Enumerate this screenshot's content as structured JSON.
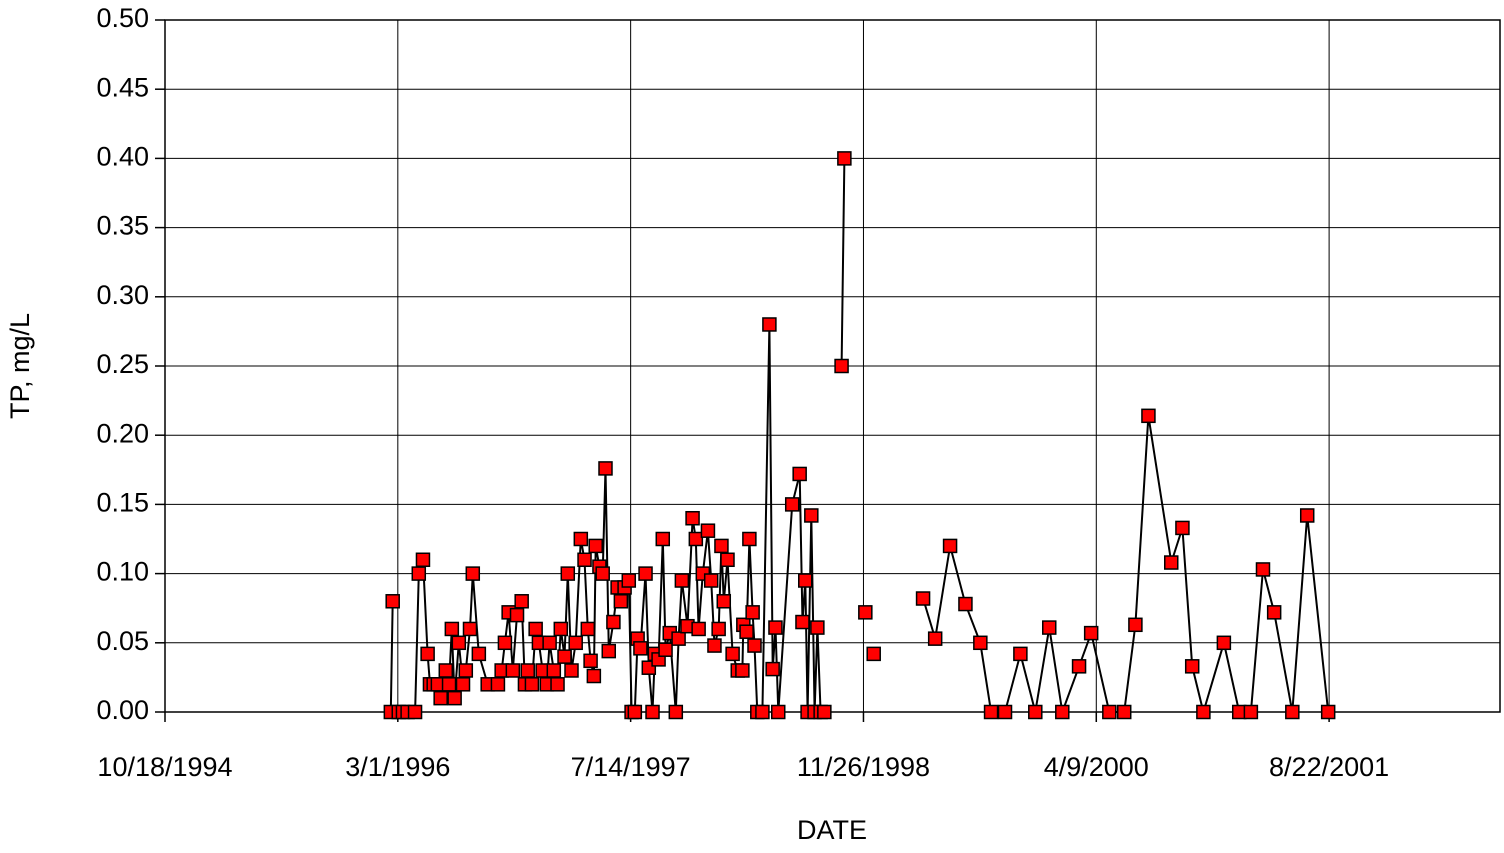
{
  "chart_data": {
    "type": "line",
    "xlabel": "DATE",
    "ylabel": "TP, mg/L",
    "color": "#000000",
    "marker_color": "#ff0000",
    "grid": true,
    "xlim": [
      "1994-10-18",
      "2002-08-24"
    ],
    "xticks": [
      {
        "value": "1994-10-18",
        "label": "10/18/1994"
      },
      {
        "value": "1996-03-01",
        "label": "3/1/1996"
      },
      {
        "value": "1997-07-14",
        "label": "7/14/1997"
      },
      {
        "value": "1998-11-26",
        "label": "11/26/1998"
      },
      {
        "value": "2000-04-09",
        "label": "4/9/2000"
      },
      {
        "value": "2001-08-22",
        "label": "8/22/2001"
      }
    ],
    "ylim": [
      0,
      0.5
    ],
    "yticks": [
      {
        "value": 0,
        "label": "0.00"
      },
      {
        "value": 0.05,
        "label": "0.05"
      },
      {
        "value": 0.1,
        "label": "0.10"
      },
      {
        "value": 0.15,
        "label": "0.15"
      },
      {
        "value": 0.2,
        "label": "0.20"
      },
      {
        "value": 0.25,
        "label": "0.25"
      },
      {
        "value": 0.3,
        "label": "0.30"
      },
      {
        "value": 0.35,
        "label": "0.35"
      },
      {
        "value": 0.4,
        "label": "0.40"
      },
      {
        "value": 0.45,
        "label": "0.45"
      },
      {
        "value": 0.5,
        "label": "0.50"
      }
    ],
    "x": [
      "1996-02-19",
      "1996-02-15",
      "1996-03-03",
      "1996-03-12",
      "1996-03-22",
      "1996-04-07",
      "1996-04-15",
      "1996-04-24",
      "1996-05-04",
      "1996-05-09",
      "1996-05-17",
      "1996-05-26",
      "1996-06-01",
      "1996-06-12",
      "1996-06-19",
      "1996-06-25",
      "1996-07-01",
      "1996-07-10",
      "1996-07-19",
      "1996-07-25",
      "1996-08-03",
      "1996-08-09",
      "1996-08-22",
      "1996-09-10",
      "1996-10-02",
      "1996-10-10",
      "1996-10-17",
      "1996-10-25",
      "1996-11-03",
      "1996-11-12",
      "1996-11-22",
      "1996-11-29",
      "1996-12-05",
      "1996-12-14",
      "1996-12-22",
      "1996-12-29",
      "1997-01-06",
      "1997-01-15",
      "1997-01-21",
      "1997-01-30",
      "1997-02-07",
      "1997-02-14",
      "1997-02-22",
      "1997-03-01",
      "1997-03-09",
      "1997-03-18",
      "1997-03-29",
      "1997-04-06",
      "1997-04-13",
      "1997-04-19",
      "1997-04-26",
      "1997-04-30",
      "1997-05-08",
      "1997-05-15",
      "1997-05-21",
      "1997-05-28",
      "1997-06-07",
      "1997-06-16",
      "1997-06-23",
      "1997-07-01",
      "1997-07-10",
      "1997-07-16",
      "1997-07-23",
      "1997-07-29",
      "1997-08-04",
      "1997-08-15",
      "1997-08-22",
      "1997-08-30",
      "1997-09-04",
      "1997-09-12",
      "1997-09-21",
      "1997-09-27",
      "1997-10-06",
      "1997-10-19",
      "1997-10-25",
      "1997-11-01",
      "1997-11-13",
      "1997-11-24",
      "1997-12-01",
      "1997-12-07",
      "1997-12-16",
      "1997-12-27",
      "1998-01-03",
      "1998-01-10",
      "1998-01-19",
      "1998-01-25",
      "1998-01-30",
      "1998-02-07",
      "1998-02-18",
      "1998-03-01",
      "1998-03-11",
      "1998-03-13",
      "1998-03-20",
      "1998-03-26",
      "1998-04-02",
      "1998-04-06",
      "1998-04-12",
      "1998-04-23",
      "1998-05-08",
      "1998-05-15",
      "1998-05-21",
      "1998-05-27",
      "1998-06-26",
      "1998-07-12",
      "1998-07-18",
      "1998-07-24",
      "1998-07-29",
      "1998-08-06",
      "1998-08-13",
      "1998-08-19",
      "1998-08-26",
      "1998-09-03",
      null,
      "1998-10-10",
      "1998-10-16",
      null,
      "1998-11-30",
      null,
      "1998-12-18",
      null,
      "1999-04-03",
      "1999-04-29",
      "1999-05-31",
      "1999-07-03",
      "1999-08-04",
      "1999-08-27",
      "1999-09-26",
      "1999-10-29",
      "1999-11-30",
      "1999-12-30",
      "2000-01-27",
      "2000-03-03",
      "2000-03-29",
      "2000-05-07",
      "2000-06-08",
      "2000-07-02",
      "2000-07-30",
      "2000-09-17",
      "2000-10-11",
      "2000-11-01",
      "2000-11-25",
      "2001-01-08",
      "2001-02-10",
      "2001-03-07",
      "2001-04-02",
      "2001-04-26",
      "2001-06-04",
      "2001-07-06",
      "2001-08-20"
    ],
    "values": [
      0.08,
      0,
      0,
      0,
      0,
      0,
      0.1,
      0.11,
      0.042,
      0.02,
      0.02,
      0.02,
      0.01,
      0.03,
      0.02,
      0.06,
      0.01,
      0.05,
      0.02,
      0.03,
      0.06,
      0.1,
      0.042,
      0.02,
      0.02,
      0.03,
      0.05,
      0.072,
      0.03,
      0.07,
      0.08,
      0.02,
      0.03,
      0.02,
      0.06,
      0.05,
      0.03,
      0.02,
      0.05,
      0.03,
      0.02,
      0.06,
      0.04,
      0.1,
      0.03,
      0.05,
      0.125,
      0.11,
      0.06,
      0.037,
      0.026,
      0.12,
      0.105,
      0.1,
      0.176,
      0.044,
      0.065,
      0.09,
      0.08,
      0.09,
      0.095,
      0,
      0,
      0.053,
      0.046,
      0.1,
      0.032,
      0,
      0.042,
      0.038,
      0.125,
      0.045,
      0.057,
      0,
      0.053,
      0.095,
      0.062,
      0.14,
      0.125,
      0.06,
      0.1,
      0.131,
      0.095,
      0.048,
      0.06,
      0.12,
      0.08,
      0.11,
      0.042,
      0.03,
      0.03,
      0.063,
      0.058,
      0.125,
      0.072,
      0.048,
      0,
      0,
      0.28,
      0.031,
      0.061,
      0,
      0.15,
      0.172,
      0.065,
      0.095,
      0,
      0.142,
      0,
      0.061,
      0,
      0,
      null,
      0.25,
      0.4,
      null,
      0.072,
      null,
      0.042,
      null,
      0.082,
      0.053,
      0.12,
      0.078,
      0.05,
      0,
      0,
      0.042,
      0,
      0.061,
      0,
      0.033,
      0.057,
      0,
      0,
      0.063,
      0.214,
      0.108,
      0.133,
      0.033,
      0,
      0.05,
      0,
      0,
      0.103,
      0.072,
      0,
      0.142,
      0
    ]
  }
}
